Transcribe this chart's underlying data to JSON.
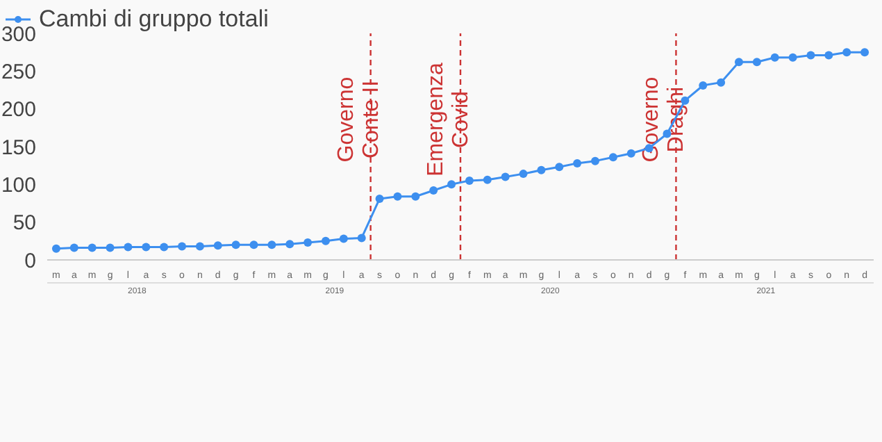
{
  "chart_data": {
    "type": "line",
    "legend": "top left",
    "marker": "circle",
    "line_style": "solid",
    "categories": [
      "m",
      "a",
      "m",
      "g",
      "l",
      "a",
      "s",
      "o",
      "n",
      "d",
      "g",
      "f",
      "m",
      "a",
      "m",
      "g",
      "l",
      "a",
      "s",
      "o",
      "n",
      "d",
      "g",
      "f",
      "m",
      "a",
      "m",
      "g",
      "l",
      "a",
      "s",
      "o",
      "n",
      "d",
      "g",
      "f",
      "m",
      "a",
      "m",
      "g",
      "l",
      "a",
      "s",
      "o",
      "n",
      "d"
    ],
    "series": [
      {
        "name": "Cambi di gruppo totali",
        "color": "#3d8fef",
        "values": [
          15,
          16,
          16,
          16,
          17,
          17,
          17,
          18,
          18,
          19,
          20,
          20,
          20,
          21,
          23,
          25,
          28,
          29,
          81,
          84,
          84,
          92,
          100,
          105,
          106,
          110,
          114,
          119,
          123,
          128,
          131,
          136,
          141,
          148,
          167,
          211,
          231,
          235,
          262,
          262,
          268,
          268,
          271,
          271,
          275,
          275
        ]
      }
    ],
    "annotations": [
      "Governo\nConte II",
      "Emergenza\nCovid",
      "Governo\nDraghi",
      "2018",
      "2019",
      "2020",
      "2021"
    ],
    "ylim": [
      0,
      300
    ],
    "yticks": [
      0,
      50,
      100,
      150,
      200,
      250,
      300
    ]
  }
}
